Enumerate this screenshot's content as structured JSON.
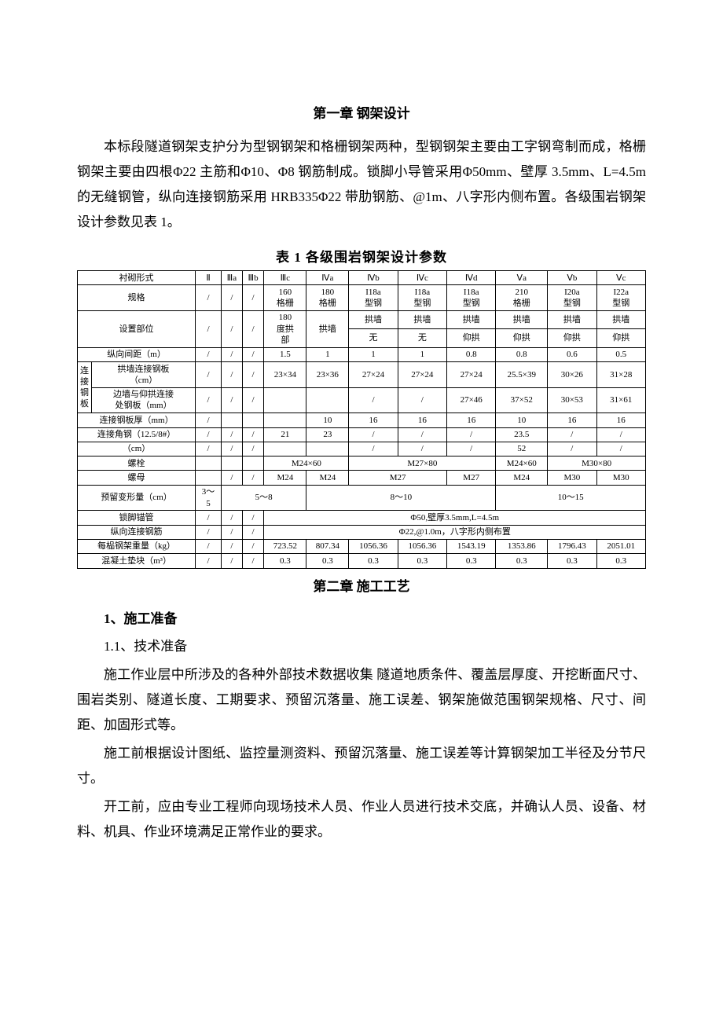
{
  "chapter1": {
    "title": "第一章 钢架设计",
    "p1": "本标段隧道钢架支护分为型钢钢架和格栅钢架两种，型钢钢架主要由工字钢弯制而成，格栅钢架主要由四根Φ22 主筋和Φ10、Φ8 钢筋制成。锁脚小导管采用Φ50mm、壁厚 3.5mm、L=4.5m 的无缝钢管，纵向连接钢筋采用 HRB335Φ22 带肋钢筋、@1m、八字形内侧布置。各级围岩钢架设计参数见表 1。"
  },
  "table1": {
    "caption": "表 1  各级围岩钢架设计参数",
    "headers": {
      "c0": "衬砌形式",
      "c1": "Ⅱ",
      "c2": "Ⅲa",
      "c3": "Ⅲb",
      "c4": "Ⅲc",
      "c5": "Ⅳa",
      "c6": "Ⅳb",
      "c7": "Ⅳc",
      "c8": "Ⅳd",
      "c9": "Ⅴa",
      "c10": "Ⅴb",
      "c11": "Ⅴc"
    },
    "rows": {
      "spec": {
        "label": "规格",
        "v1": "/",
        "v2": "/",
        "v3": "/",
        "v4": "160\n格栅",
        "v5": "180\n格栅",
        "v6": "I18a\n型钢",
        "v7": "I18a\n型钢",
        "v8": "I18a\n型钢",
        "v9": "210\n格栅",
        "v10": "I20a\n型钢",
        "v11": "I22a\n型钢"
      },
      "pos_top": {
        "label": "设置部位",
        "v1": "/",
        "v2": "/",
        "v3": "/",
        "v4": "180\n度拱\n部",
        "v5": "拱墙",
        "v6": "拱墙",
        "v7": "拱墙",
        "v8": "拱墙",
        "v9": "拱墙",
        "v10": "拱墙",
        "v11": "拱墙"
      },
      "pos_bot": {
        "v6": "无",
        "v7": "无",
        "v8": "仰拱",
        "v9": "仰拱",
        "v10": "仰拱",
        "v11": "仰拱"
      },
      "spacing": {
        "label": "纵向间距（m）",
        "v1": "/",
        "v2": "/",
        "v3": "/",
        "v4": "1.5",
        "v5": "1",
        "v6": "1",
        "v7": "1",
        "v8": "0.8",
        "v9": "0.8",
        "v10": "0.6",
        "v11": "0.5"
      },
      "plate_group": "连\n接\n钢\n板",
      "arch_plate": {
        "label": "拱墙连接钢板\n（cm）",
        "v1": "/",
        "v2": "/",
        "v3": "/",
        "v4": "23×34",
        "v5": "23×36",
        "v6": "27×24",
        "v7": "27×24",
        "v8": "27×24",
        "v9": "25.5×39",
        "v10": "30×26",
        "v11": "31×28"
      },
      "wall_plate": {
        "label": "边墙与仰拱连接\n处钢板（mm）",
        "v1": "/",
        "v2": "/",
        "v3": "/",
        "v4": "",
        "v5": "",
        "v6": "/",
        "v7": "/",
        "v8": "27×46",
        "v9": "37×52",
        "v10": "30×53",
        "v11": "31×61"
      },
      "plate_thick": {
        "label": "连接钢板厚（mm）",
        "v1": "/",
        "v2": "",
        "v3": "",
        "v4": "",
        "v5": "10",
        "v6": "16",
        "v7": "16",
        "v8": "16",
        "v9": "10",
        "v10": "16",
        "v11": "16"
      },
      "angle1": {
        "label": "连接角钢（12.5/8#）",
        "v1": "/",
        "v2": "/",
        "v3": "/",
        "v4": "21",
        "v5": "23",
        "v6": "/",
        "v7": "/",
        "v8": "/",
        "v9": "23.5",
        "v10": "/",
        "v11": "/"
      },
      "angle_cm": {
        "label": "（cm）",
        "v1": "/",
        "v2": "/",
        "v3": "/",
        "v4": "",
        "v5": "",
        "v6": "/",
        "v7": "/",
        "v8": "/",
        "v9": "52",
        "v10": "/",
        "v11": "/"
      },
      "bolt": {
        "label": "螺栓",
        "v1": "",
        "v2": "",
        "v3": "",
        "v45": "M24×60",
        "v678": "M27×80",
        "v9": "M24×60",
        "v1011": "M30×80"
      },
      "nut": {
        "label": "螺母",
        "v1": "",
        "v2": "/",
        "v3": "/",
        "v4": "M24",
        "v5": "M24",
        "v67": "M27",
        "v8": "M27",
        "v9": "M24",
        "v10": "M30",
        "v11": "M30"
      },
      "deform": {
        "label": "预留变形量（cm）",
        "v1": "3～\n5",
        "v234": "5～8",
        "v5678": "8～10",
        "v91011": "10～15"
      },
      "lock": {
        "label": "锁脚锚管",
        "v1": "/",
        "v2": "/",
        "v3": "/",
        "merged": "Φ50,壁厚3.5mm,L=4.5m"
      },
      "rebar": {
        "label": "纵向连接钢筋",
        "v1": "/",
        "v2": "/",
        "v3": "/",
        "merged": "Φ22,@1.0m，八字形内侧布置"
      },
      "weight": {
        "label": "每榀钢架重量（kg）",
        "v1": "/",
        "v2": "/",
        "v3": "/",
        "v4": "723.52",
        "v5": "807.34",
        "v6": "1056.36",
        "v7": "1056.36",
        "v8": "1543.19",
        "v9": "1353.86",
        "v10": "1796.43",
        "v11": "2051.01"
      },
      "concrete": {
        "label": "混凝土垫块（m³）",
        "v1": "/",
        "v2": "/",
        "v3": "/",
        "v4": "0.3",
        "v5": "0.3",
        "v6": "0.3",
        "v7": "0.3",
        "v8": "0.3",
        "v9": "0.3",
        "v10": "0.3",
        "v11": "0.3"
      }
    }
  },
  "chapter2": {
    "title": "第二章  施工工艺",
    "s1_title": "1、施工准备",
    "s1_1": "1.1、技术准备",
    "p1": "施工作业层中所涉及的各种外部技术数据收集 隧道地质条件、覆盖层厚度、开挖断面尺寸、围岩类别、隧道长度、工期要求、预留沉落量、施工误差、钢架施做范围钢架规格、尺寸、间距、加固形式等。",
    "p2": "施工前根据设计图纸、监控量测资料、预留沉落量、施工误差等计算钢架加工半径及分节尺寸。",
    "p3": "开工前，应由专业工程师向现场技术人员、作业人员进行技术交底，并确认人员、设备、材料、机具、作业环境满足正常作业的要求。"
  }
}
